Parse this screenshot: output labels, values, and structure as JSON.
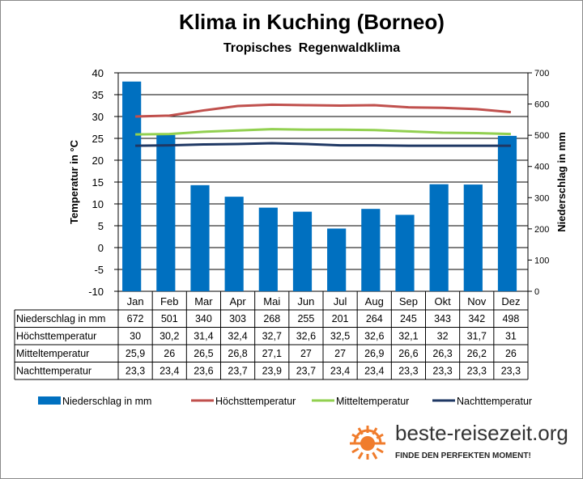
{
  "chart_data": {
    "type": "bar+line+table",
    "title": "Klima in Kuching (Borneo)",
    "subtitle": "Tropisches  Regenwaldklima",
    "categories": [
      "Jan",
      "Feb",
      "Mar",
      "Apr",
      "Mai",
      "Jun",
      "Jul",
      "Aug",
      "Sep",
      "Okt",
      "Nov",
      "Dez"
    ],
    "y_left": {
      "label": "Temperatur in °C",
      "lim": [
        -10,
        40
      ],
      "ticks": [
        -10,
        -5,
        0,
        5,
        10,
        15,
        20,
        25,
        30,
        35,
        40
      ]
    },
    "y_right": {
      "label": "Niederschlag in mm",
      "lim": [
        0,
        700
      ],
      "ticks": [
        0,
        100,
        200,
        300,
        400,
        500,
        600,
        700
      ]
    },
    "grid": true,
    "legend_position": "bottom",
    "series": [
      {
        "name": "Niederschlag in mm",
        "kind": "bar",
        "axis": "right",
        "color": "#0070c0",
        "values": [
          672,
          501,
          340,
          303,
          268,
          255,
          201,
          264,
          245,
          343,
          342,
          498
        ],
        "labels": [
          "672",
          "501",
          "340",
          "303",
          "268",
          "255",
          "201",
          "264",
          "245",
          "343",
          "342",
          "498"
        ]
      },
      {
        "name": "Höchsttemperatur",
        "kind": "line",
        "axis": "left",
        "color": "#c0504d",
        "values": [
          30,
          30.2,
          31.4,
          32.4,
          32.7,
          32.6,
          32.5,
          32.6,
          32.1,
          32,
          31.7,
          31
        ],
        "labels": [
          "30",
          "30,2",
          "31,4",
          "32,4",
          "32,7",
          "32,6",
          "32,5",
          "32,6",
          "32,1",
          "32",
          "31,7",
          "31"
        ]
      },
      {
        "name": "Mitteltemperatur",
        "kind": "line",
        "axis": "left",
        "color": "#92d050",
        "values": [
          25.9,
          26,
          26.5,
          26.8,
          27.1,
          27,
          27,
          26.9,
          26.6,
          26.3,
          26.2,
          26
        ],
        "labels": [
          "25,9",
          "26",
          "26,5",
          "26,8",
          "27,1",
          "27",
          "27",
          "26,9",
          "26,6",
          "26,3",
          "26,2",
          "26"
        ]
      },
      {
        "name": "Nachttemperatur",
        "kind": "line",
        "axis": "left",
        "color": "#1f3864",
        "values": [
          23.3,
          23.4,
          23.6,
          23.7,
          23.9,
          23.7,
          23.4,
          23.4,
          23.3,
          23.3,
          23.3,
          23.3
        ],
        "labels": [
          "23,3",
          "23,4",
          "23,6",
          "23,7",
          "23,9",
          "23,7",
          "23,4",
          "23,4",
          "23,3",
          "23,3",
          "23,3",
          "23,3"
        ]
      }
    ]
  },
  "branding": {
    "site": "beste-reisezeit.org",
    "tagline": "FINDE DEN PERFEKTEN MOMENT!",
    "sun_color": "#f07c2c"
  }
}
